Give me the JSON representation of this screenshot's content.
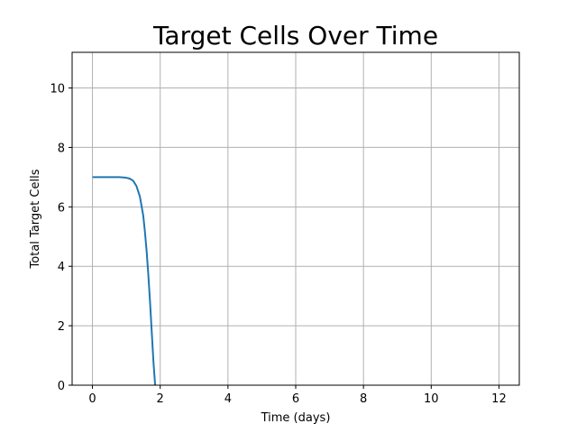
{
  "chart_data": {
    "type": "line",
    "title": "Target Cells Over Time",
    "xlabel": "Time (days)",
    "ylabel": "Total Target Cells",
    "xlim": [
      -0.6,
      12.6
    ],
    "ylim": [
      0,
      11.2
    ],
    "xticks": [
      0,
      2,
      4,
      6,
      8,
      10,
      12
    ],
    "yticks": [
      0,
      2,
      4,
      6,
      8,
      10
    ],
    "xtick_labels": [
      "0",
      "2",
      "4",
      "6",
      "8",
      "10",
      "12"
    ],
    "ytick_labels": [
      "0",
      "2",
      "4",
      "6",
      "8",
      "10"
    ],
    "grid": true,
    "series": [
      {
        "color": "#1f77b4",
        "x": [
          0,
          0.2,
          0.4,
          0.6,
          0.8,
          1.0,
          1.1,
          1.2,
          1.3,
          1.4,
          1.5,
          1.55,
          1.6,
          1.65,
          1.7,
          1.75,
          1.8,
          1.85
        ],
        "y": [
          7.0,
          7.0,
          7.0,
          7.0,
          7.0,
          6.98,
          6.95,
          6.88,
          6.7,
          6.35,
          5.7,
          5.15,
          4.5,
          3.7,
          2.8,
          1.8,
          0.8,
          0.0
        ]
      }
    ]
  }
}
